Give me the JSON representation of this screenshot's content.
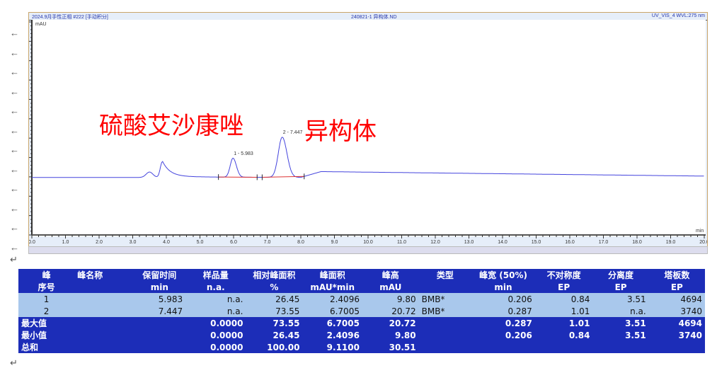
{
  "header": {
    "left": "2024.9月手性正相 #222 [手动积分]",
    "center": "240821-1 异构体.ND",
    "right": "UV_VIS_4 WVL:275 nm"
  },
  "annotations": {
    "main": "硫酸艾沙康唑",
    "isomer": "异构体"
  },
  "chart_data": {
    "type": "line",
    "title": "",
    "xlabel": "min",
    "ylabel": "mAU",
    "xlim": [
      0,
      20
    ],
    "ylim": [
      -30,
      80
    ],
    "x_ticks": [
      "0.0",
      "1.0",
      "2.0",
      "3.0",
      "4.0",
      "5.0",
      "6.0",
      "7.0",
      "8.0",
      "9.0",
      "10.0",
      "11.0",
      "12.0",
      "13.0",
      "14.0",
      "15.0",
      "16.0",
      "17.0",
      "18.0",
      "19.0",
      "20.0"
    ],
    "y_ticks": [
      "80",
      "70",
      "60",
      "50",
      "40",
      "30",
      "20",
      "10",
      "0",
      "-10",
      "-20",
      "-30"
    ],
    "peaks": [
      {
        "label": "1 - 5.983",
        "rt": 5.983,
        "height": 9.8,
        "width": 0.206,
        "start": 5.55,
        "end": 6.7
      },
      {
        "label": "2 - 7.447",
        "rt": 7.447,
        "height": 20.72,
        "width": 0.287,
        "start": 6.85,
        "end": 8.1
      }
    ],
    "other_features": [
      {
        "rt": 3.5,
        "height": 3
      },
      {
        "rt": 3.88,
        "height": 8
      }
    ],
    "line_color": "#4444dd",
    "baseline_color": "#dd3333"
  },
  "table": {
    "headers": [
      [
        "峰",
        "序号"
      ],
      [
        "峰名称",
        ""
      ],
      [
        "保留时间",
        "min"
      ],
      [
        "样品量",
        "n.a."
      ],
      [
        "相对峰面积",
        "%"
      ],
      [
        "峰面积",
        "mAU*min"
      ],
      [
        "峰高",
        "mAU"
      ],
      [
        "类型",
        ""
      ],
      [
        "峰宽 (50%)",
        "min"
      ],
      [
        "不对称度",
        "EP"
      ],
      [
        "分离度",
        "EP"
      ],
      [
        "塔板数",
        "EP"
      ]
    ],
    "rows": [
      [
        "1",
        "",
        "5.983",
        "n.a.",
        "26.45",
        "2.4096",
        "9.80",
        "BMB*",
        "0.206",
        "0.84",
        "3.51",
        "4694"
      ],
      [
        "2",
        "",
        "7.447",
        "n.a.",
        "73.55",
        "6.7005",
        "20.72",
        "BMB*",
        "0.287",
        "1.01",
        "n.a.",
        "3740"
      ]
    ],
    "summary": [
      [
        "最大值",
        "",
        "",
        "0.0000",
        "73.55",
        "6.7005",
        "20.72",
        "",
        "0.287",
        "1.01",
        "3.51",
        "4694"
      ],
      [
        "最小值",
        "",
        "",
        "0.0000",
        "26.45",
        "2.4096",
        "9.80",
        "",
        "0.206",
        "0.84",
        "3.51",
        "3740"
      ],
      [
        "总和",
        "",
        "",
        "0.0000",
        "100.00",
        "9.1100",
        "30.51",
        "",
        "",
        "",
        "",
        ""
      ]
    ]
  }
}
